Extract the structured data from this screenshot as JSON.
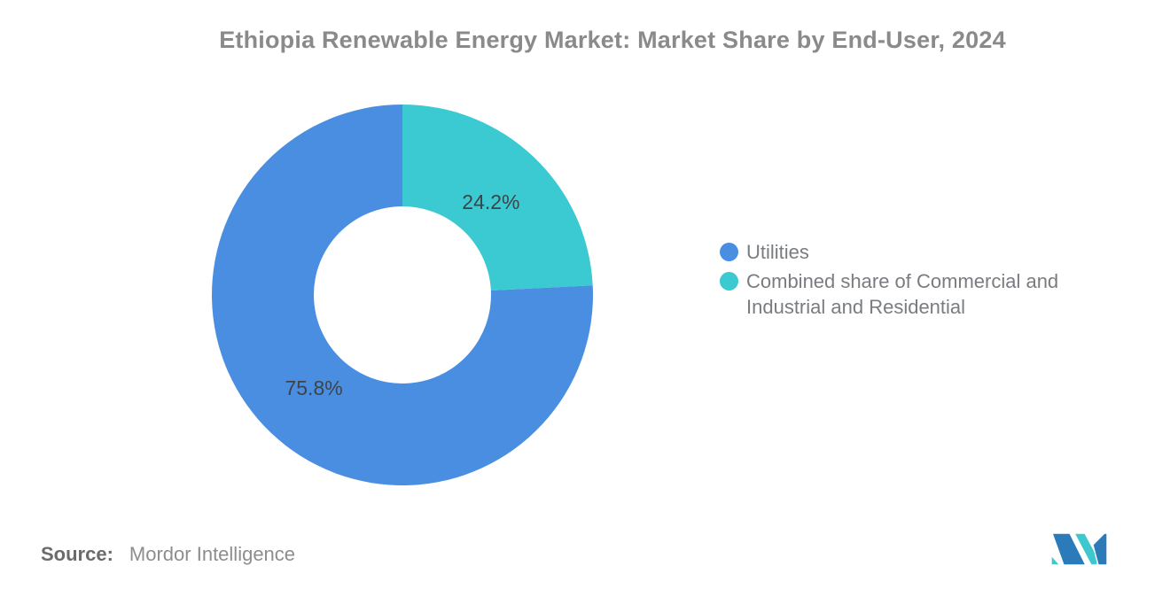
{
  "title": "Ethiopia Renewable Energy Market: Market Share by End-User, 2024",
  "chart_data": {
    "type": "pie",
    "title": "Ethiopia Renewable Energy Market: Market Share by End-User, 2024",
    "donut": true,
    "inner_radius_pct": 46.5,
    "start_angle_deg": 0,
    "direction": "clockwise",
    "legend_position": "right",
    "label_color": "#3f4347",
    "slices": [
      {
        "label": "Utilities",
        "value": 75.8,
        "display": "75.8%",
        "color": "#4a8ee2"
      },
      {
        "label": "Combined share of Commercial and Industrial and Residential",
        "value": 24.2,
        "display": "24.2%",
        "color": "#3bc9d2"
      }
    ]
  },
  "source": {
    "label": "Source:",
    "value": "Mordor Intelligence"
  },
  "logo": {
    "name": "Mordor Intelligence logo",
    "blue": "#2b7ab9",
    "teal": "#3ec8ce"
  }
}
